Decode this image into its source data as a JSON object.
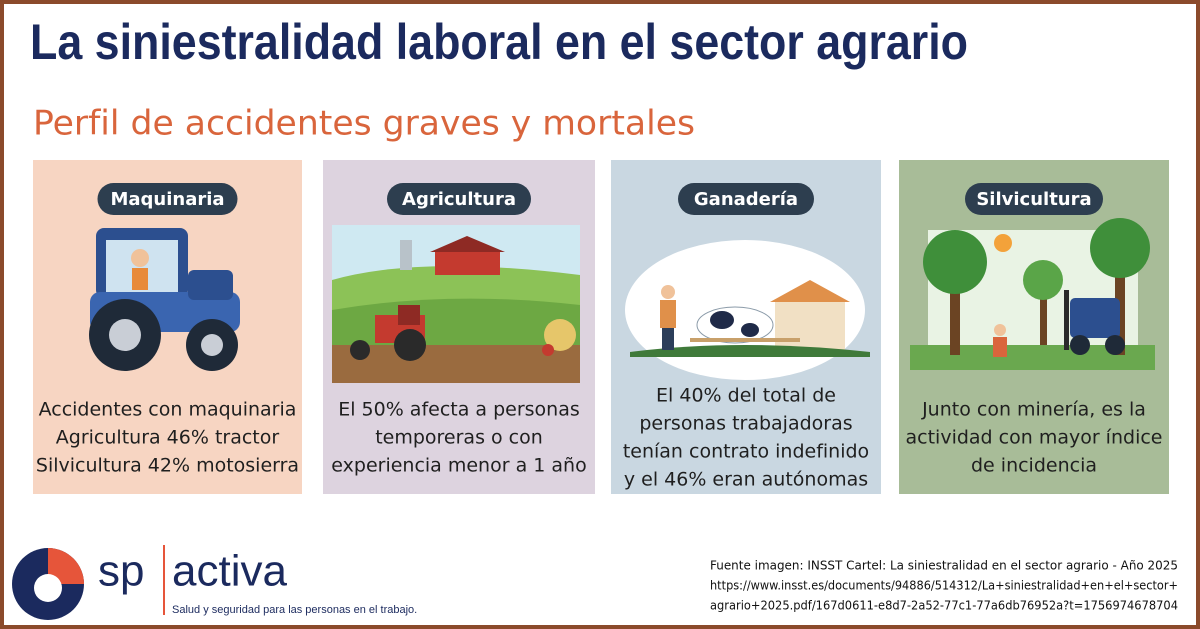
{
  "header": {
    "title": "La siniestralidad laboral en el sector agrario",
    "subtitle": "Perfil de accidentes graves y mortales"
  },
  "cards": [
    {
      "label": "Maquinaria",
      "lines": [
        "Accidentes con maquinaria",
        "Agricultura 46% tractor",
        "Silvicultura 42% motosierra"
      ]
    },
    {
      "label": "Agricultura",
      "lines": [
        "El 50% afecta a personas",
        "temporeras o con",
        "experiencia menor a 1 año"
      ]
    },
    {
      "label": "Ganadería",
      "lines": [
        "El 40% del total de",
        "personas trabajadoras",
        "tenían contrato indefinido",
        "y el 46% eran autónomas"
      ]
    },
    {
      "label": "Silvicultura",
      "lines": [
        "Junto con minería, es la",
        "actividad con mayor índice",
        "de incidencia"
      ]
    }
  ],
  "logo": {
    "part1": "sp",
    "part2": "activa",
    "tagline": "Salud y seguridad para las personas en el trabajo."
  },
  "source": {
    "lines": [
      "Fuente imagen: INSST Cartel: La siniestralidad en el sector agrario - Año 2025",
      "https://www.insst.es/documents/94886/514312/La+siniestralidad+en+el+sector+",
      "agrario+2025.pdf/167d0611-e8d7-2a52-77c1-77a6db76952a?t=1756974678704"
    ]
  }
}
